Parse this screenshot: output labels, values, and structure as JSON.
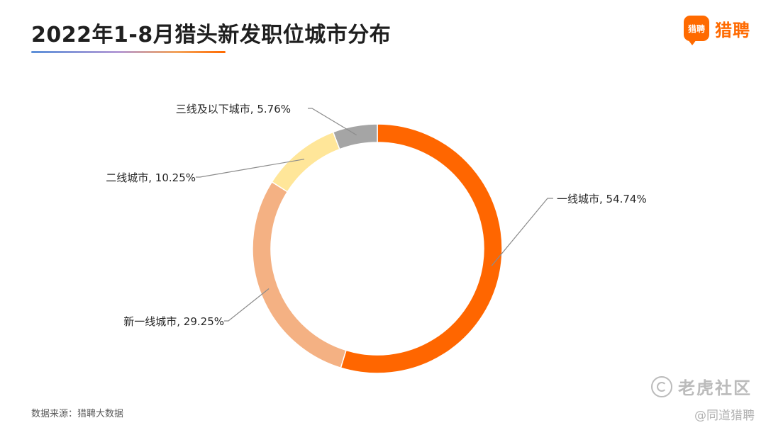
{
  "title": "2022年1-8月猎头新发职位城市分布",
  "brand": {
    "logo_text": "猎聘",
    "name": "猎聘"
  },
  "source": "数据来源：猎聘大数据",
  "watermark": {
    "text": "老虎社区",
    "handle": "@同道猎聘"
  },
  "chart_data": {
    "type": "pie",
    "donut": true,
    "categories": [
      "一线城市",
      "新一线城市",
      "二线城市",
      "三线及以下城市"
    ],
    "values": [
      54.74,
      29.25,
      10.25,
      5.76
    ],
    "labels": [
      "一线城市, 54.74%",
      "新一线城市, 29.25%",
      "二线城市, 10.25%",
      "三线及以下城市, 5.76%"
    ],
    "colors": [
      "#ff6600",
      "#f4b183",
      "#ffe699",
      "#a5a5a5"
    ],
    "title": "2022年1-8月猎头新发职位城市分布"
  }
}
